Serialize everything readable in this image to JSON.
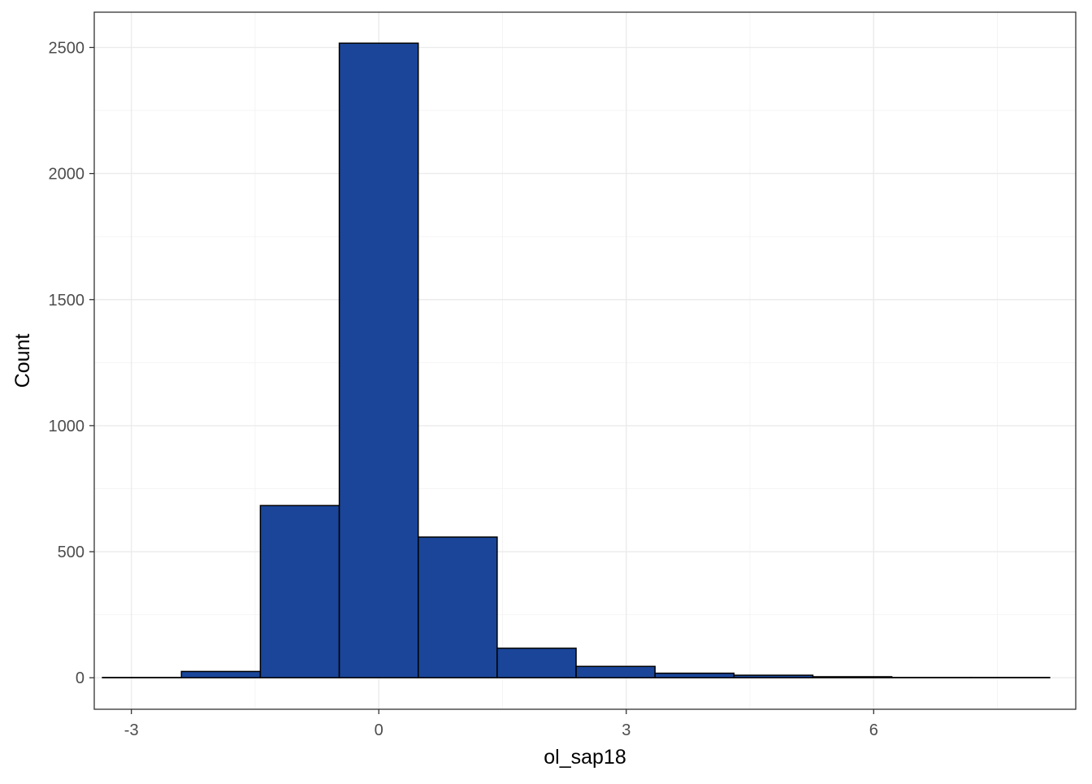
{
  "chart_data": {
    "type": "bar",
    "title": "",
    "xlabel": "ol_sap18",
    "ylabel": "Count",
    "xlim": [
      -3.45,
      8.45
    ],
    "ylim": [
      -125,
      2640
    ],
    "x_ticks": [
      -3,
      0,
      3,
      6
    ],
    "x_tick_labels": [
      "-3",
      "0",
      "3",
      "6"
    ],
    "y_ticks": [
      0,
      500,
      1000,
      1500,
      2000,
      2500
    ],
    "y_tick_labels": [
      "0",
      "500",
      "1000",
      "1500",
      "2000",
      "2500"
    ],
    "grid": true,
    "legend": "none",
    "bin_width": 0.957,
    "bins": [
      {
        "x_start": -3.35,
        "x_end": -2.393,
        "count": 1
      },
      {
        "x_start": -2.393,
        "x_end": -1.436,
        "count": 25
      },
      {
        "x_start": -1.436,
        "x_end": -0.479,
        "count": 683
      },
      {
        "x_start": -0.479,
        "x_end": 0.478,
        "count": 2517
      },
      {
        "x_start": 0.478,
        "x_end": 1.435,
        "count": 558
      },
      {
        "x_start": 1.435,
        "x_end": 2.392,
        "count": 117
      },
      {
        "x_start": 2.392,
        "x_end": 3.349,
        "count": 45
      },
      {
        "x_start": 3.349,
        "x_end": 4.306,
        "count": 18
      },
      {
        "x_start": 4.306,
        "x_end": 5.263,
        "count": 10
      },
      {
        "x_start": 5.263,
        "x_end": 6.22,
        "count": 4
      },
      {
        "x_start": 6.22,
        "x_end": 7.177,
        "count": 1
      },
      {
        "x_start": 7.177,
        "x_end": 8.134,
        "count": 1
      }
    ],
    "colors": {
      "bar_fill": "#1a4599",
      "bar_stroke": "#000000",
      "grid_major": "#ebebeb",
      "grid_minor": "#f4f4f4",
      "panel_border": "#333333",
      "tick_text": "#4d4d4d"
    }
  }
}
